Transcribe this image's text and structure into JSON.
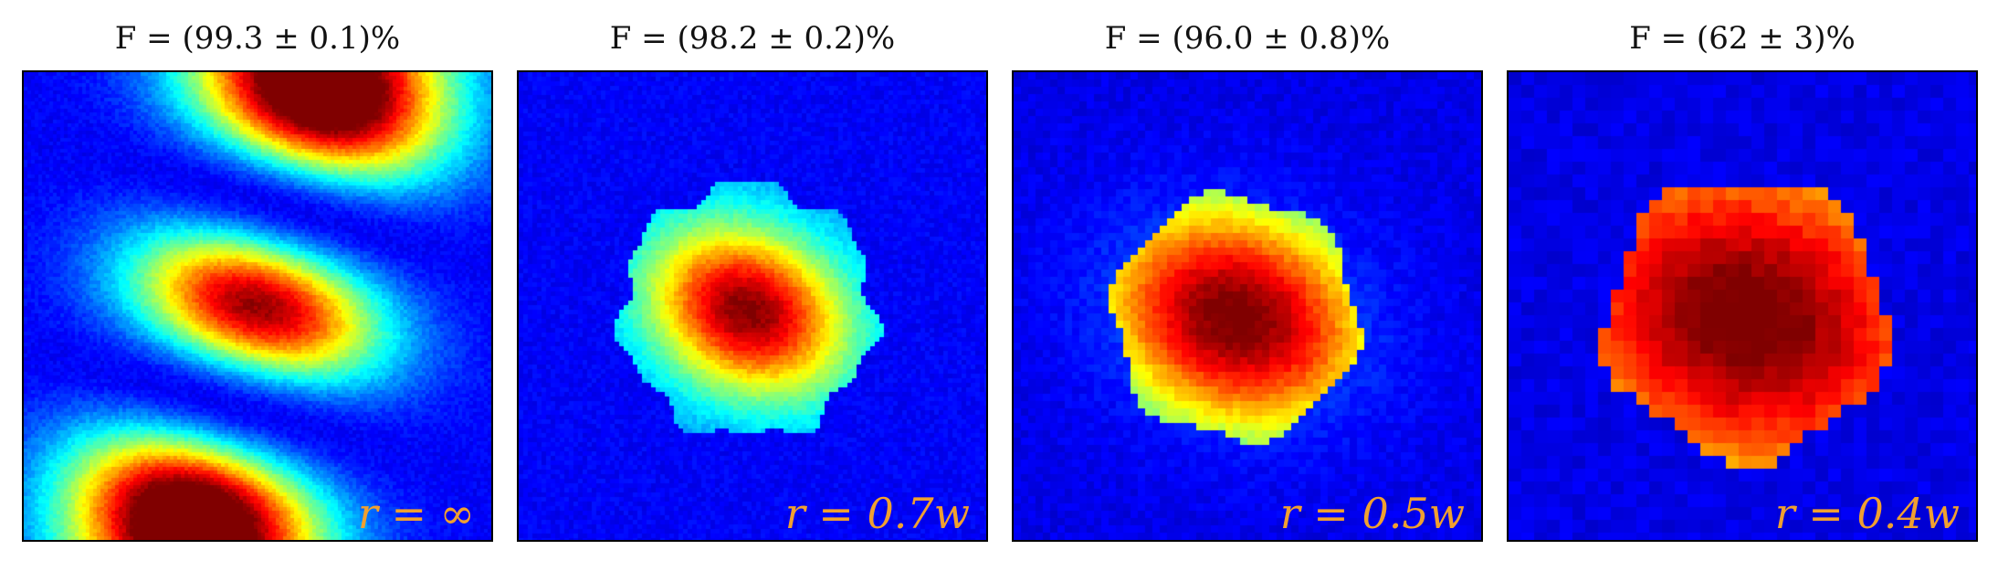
{
  "figure": {
    "colormap": "jet",
    "background_color": "#00008f",
    "label_color": "#f0a030",
    "panels": [
      {
        "title": "F = (99.3 ± 0.1)%",
        "label": "r = ∞",
        "pattern": "hermite-gauss-three-lobes"
      },
      {
        "title": "F = (98.2 ± 0.2)%",
        "label": "r = 0.7w",
        "pattern": "gaussian-ring"
      },
      {
        "title": "F = (96.0 ± 0.8)%",
        "label": "r = 0.5w",
        "pattern": "gaussian-blob"
      },
      {
        "title": "F = (62 ± 3)%",
        "label": "r = 0.4w",
        "pattern": "gaussian-pixelated"
      }
    ]
  }
}
